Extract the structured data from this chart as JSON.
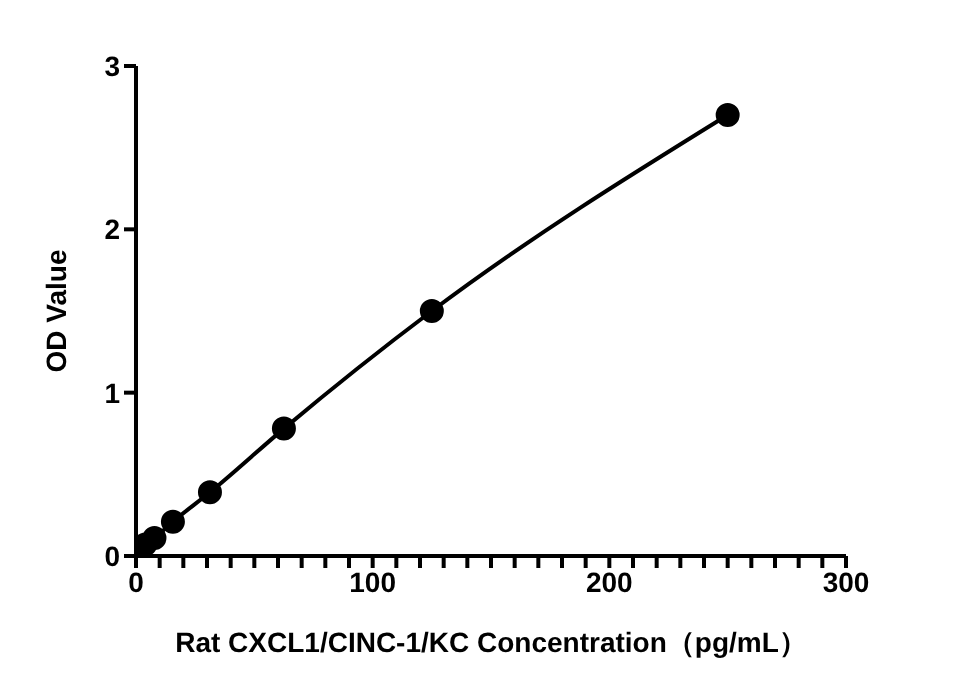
{
  "chart_data": {
    "type": "line",
    "xlabel": "Rat CXCL1/CINC-1/KC Concentration（pg/mL）",
    "ylabel": "OD Value",
    "x": [
      0,
      3.9,
      7.8,
      15.6,
      31.25,
      62.5,
      125,
      250
    ],
    "series": [
      {
        "color": "#000000",
        "values": [
          0.04,
          0.07,
          0.11,
          0.21,
          0.39,
          0.78,
          1.5,
          2.7
        ]
      }
    ],
    "xlim": [
      0,
      300
    ],
    "xticks": [
      0,
      {
        "value": 10,
        "label": null
      },
      {
        "value": 20,
        "label": null
      },
      {
        "value": 30,
        "label": null
      },
      {
        "value": 40,
        "label": null
      },
      {
        "value": 50,
        "label": null
      },
      {
        "value": 60,
        "label": null
      },
      {
        "value": 70,
        "label": null
      },
      {
        "value": 80,
        "label": null
      },
      {
        "value": 90,
        "label": null
      },
      100,
      {
        "value": 110,
        "label": null
      },
      {
        "value": 120,
        "label": null
      },
      {
        "value": 130,
        "label": null
      },
      {
        "value": 140,
        "label": null
      },
      {
        "value": 150,
        "label": null
      },
      {
        "value": 160,
        "label": null
      },
      {
        "value": 170,
        "label": null
      },
      {
        "value": 180,
        "label": null
      },
      {
        "value": 190,
        "label": null
      },
      200,
      {
        "value": 210,
        "label": null
      },
      {
        "value": 220,
        "label": null
      },
      {
        "value": 230,
        "label": null
      },
      {
        "value": 240,
        "label": null
      },
      {
        "value": 250,
        "label": null
      },
      {
        "value": 260,
        "label": null
      },
      {
        "value": 270,
        "label": null
      },
      {
        "value": 280,
        "label": null
      },
      {
        "value": 290,
        "label": null
      },
      300
    ],
    "ylim": [
      0,
      3
    ],
    "yticks": [
      0,
      1,
      2,
      3
    ],
    "grid": false,
    "legend": false,
    "marker": "circle",
    "line_style": "solid"
  }
}
